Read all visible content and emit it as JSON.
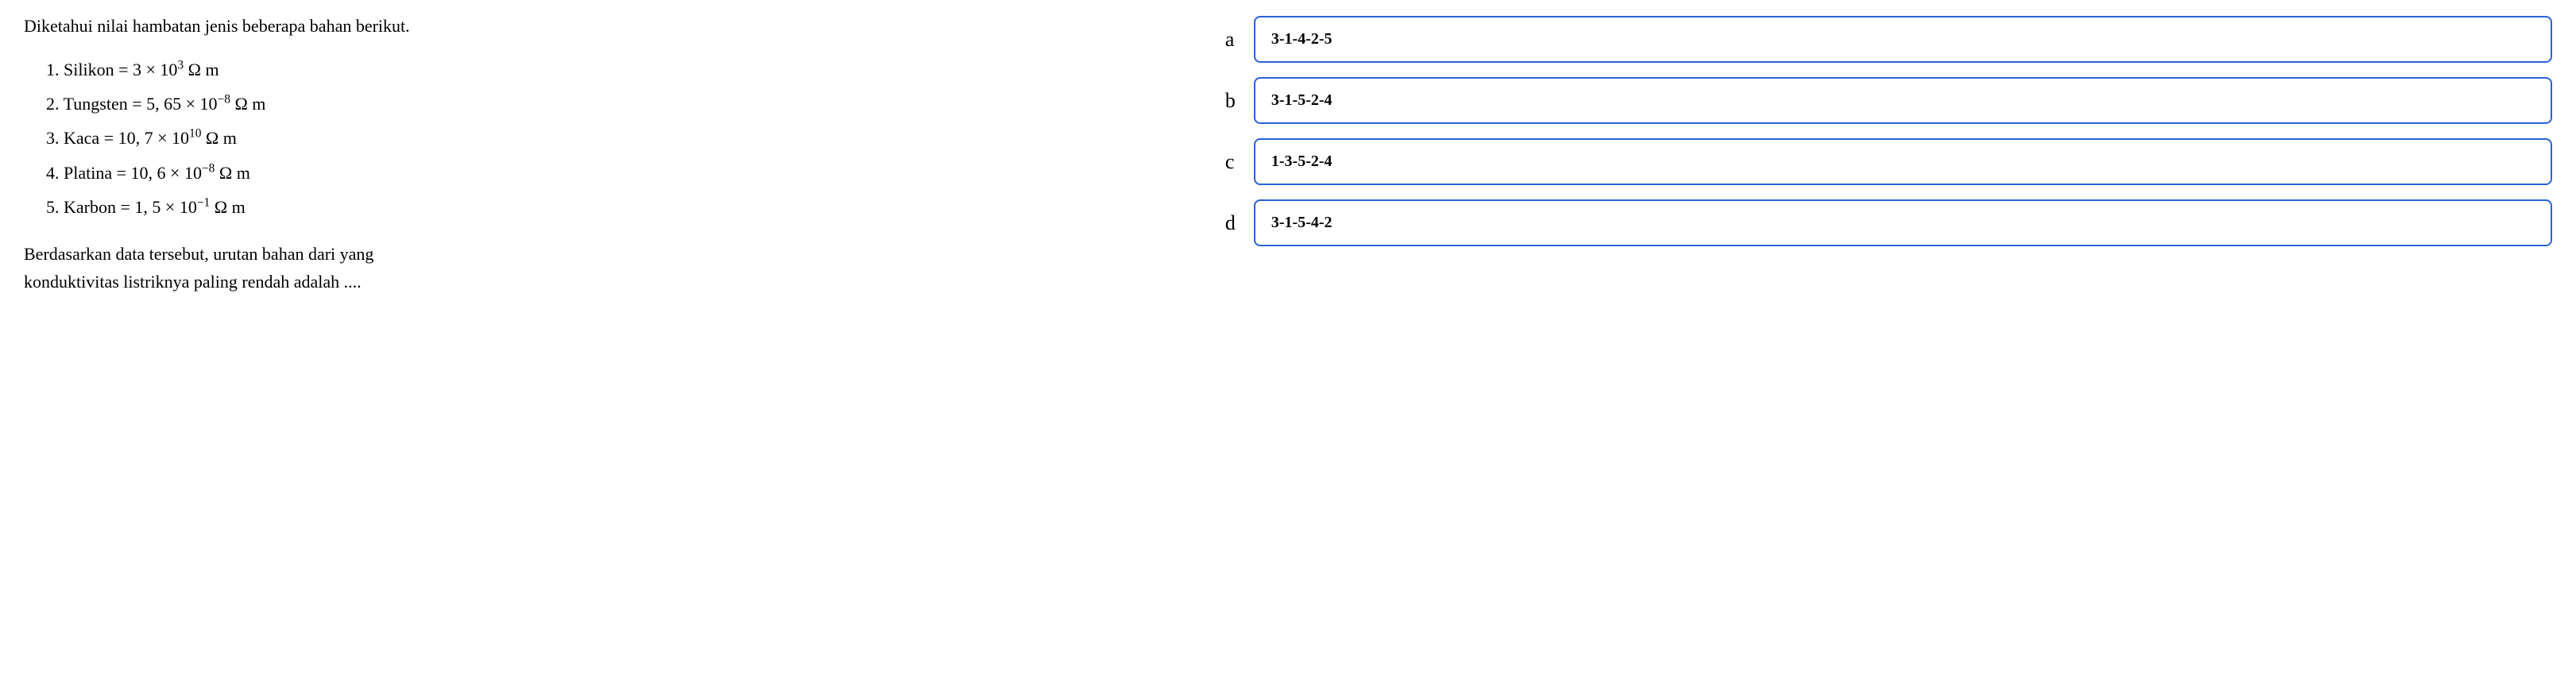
{
  "question": {
    "intro": "Diketahui nilai hambatan jenis beberapa bahan berikut.",
    "ending_line1": "Berdasarkan data tersebut, urutan bahan dari yang",
    "ending_line2": "konduktivitas listriknya paling rendah adalah ...."
  },
  "materials": [
    {
      "num": "1",
      "name": "Silikon",
      "coeff": "3",
      "exp": "3",
      "unit": "Ω m"
    },
    {
      "num": "2",
      "name": "Tungsten",
      "coeff": "5, 65",
      "exp": "−8",
      "unit": "Ω m"
    },
    {
      "num": "3",
      "name": "Kaca",
      "coeff": "10, 7",
      "exp": "10",
      "unit": "Ω m"
    },
    {
      "num": "4",
      "name": "Platina",
      "coeff": "10, 6",
      "exp": "−8",
      "unit": "Ω m"
    },
    {
      "num": "5",
      "name": "Karbon",
      "coeff": "1, 5",
      "exp": "−1",
      "unit": "Ω m"
    }
  ],
  "options": [
    {
      "letter": "a",
      "text": "3-1-4-2-5"
    },
    {
      "letter": "b",
      "text": "3-1-5-2-4"
    },
    {
      "letter": "c",
      "text": "1-3-5-2-4"
    },
    {
      "letter": "d",
      "text": "3-1-5-4-2"
    }
  ],
  "styles": {
    "option_border_color": "#2962d9",
    "text_color": "#000000",
    "background_color": "#ffffff",
    "intro_fontsize": 22,
    "option_fontsize": 20,
    "letter_fontsize": 26
  }
}
